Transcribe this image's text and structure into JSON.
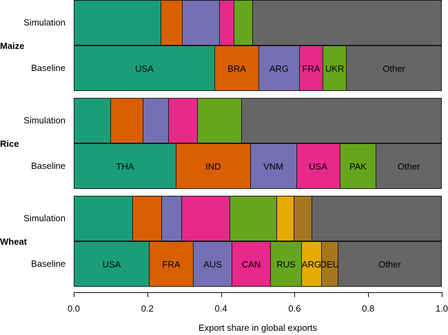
{
  "chart_data": {
    "type": "bar",
    "orientation": "horizontal-stacked",
    "xlabel": "Export share in global exports",
    "ylabel": "",
    "xlim": [
      0,
      1
    ],
    "x_ticks": [
      "0.0",
      "0.2",
      "0.4",
      "0.6",
      "0.8",
      "1.0"
    ],
    "grid": false,
    "legend": "none (segments labeled inline on Baseline bars)",
    "palette": {
      "seg1": "#1b9e77",
      "seg2": "#d95f02",
      "seg3": "#7570b3",
      "seg4": "#e7298a",
      "seg5": "#66a61e",
      "seg6": "#e6ab02",
      "seg7": "#a6761d",
      "other": "#666666"
    },
    "groups": [
      {
        "crop": "Maize",
        "categories": [
          "USA",
          "BRA",
          "ARG",
          "FRA",
          "UKR",
          "Other"
        ],
        "colors": [
          "#1b9e77",
          "#d95f02",
          "#7570b3",
          "#e7298a",
          "#66a61e",
          "#666666"
        ],
        "series": [
          {
            "name": "Simulation",
            "values": [
              0.236,
              0.058,
              0.101,
              0.039,
              0.051,
              0.515
            ],
            "show_labels": false
          },
          {
            "name": "Baseline",
            "values": [
              0.382,
              0.12,
              0.11,
              0.064,
              0.064,
              0.26
            ],
            "show_labels": true
          }
        ]
      },
      {
        "crop": "Rice",
        "categories": [
          "THA",
          "IND",
          "VNM",
          "USA",
          "PAK",
          "Other"
        ],
        "colors": [
          "#1b9e77",
          "#d95f02",
          "#7570b3",
          "#e7298a",
          "#66a61e",
          "#666666"
        ],
        "series": [
          {
            "name": "Simulation",
            "values": [
              0.099,
              0.088,
              0.069,
              0.079,
              0.12,
              0.545
            ],
            "show_labels": false
          },
          {
            "name": "Baseline",
            "values": [
              0.277,
              0.202,
              0.125,
              0.118,
              0.099,
              0.179
            ],
            "show_labels": true
          }
        ]
      },
      {
        "crop": "Wheat",
        "categories": [
          "USA",
          "FRA",
          "AUS",
          "CAN",
          "RUS",
          "ARG",
          "DEU",
          "Other"
        ],
        "colors": [
          "#1b9e77",
          "#d95f02",
          "#7570b3",
          "#e7298a",
          "#66a61e",
          "#e6ab02",
          "#a6761d",
          "#666666"
        ],
        "series": [
          {
            "name": "Simulation",
            "values": [
              0.159,
              0.079,
              0.054,
              0.131,
              0.127,
              0.047,
              0.049,
              0.354
            ],
            "show_labels": false
          },
          {
            "name": "Baseline",
            "values": [
              0.204,
              0.12,
              0.105,
              0.105,
              0.084,
              0.054,
              0.045,
              0.283
            ],
            "show_labels": true
          }
        ]
      }
    ]
  }
}
